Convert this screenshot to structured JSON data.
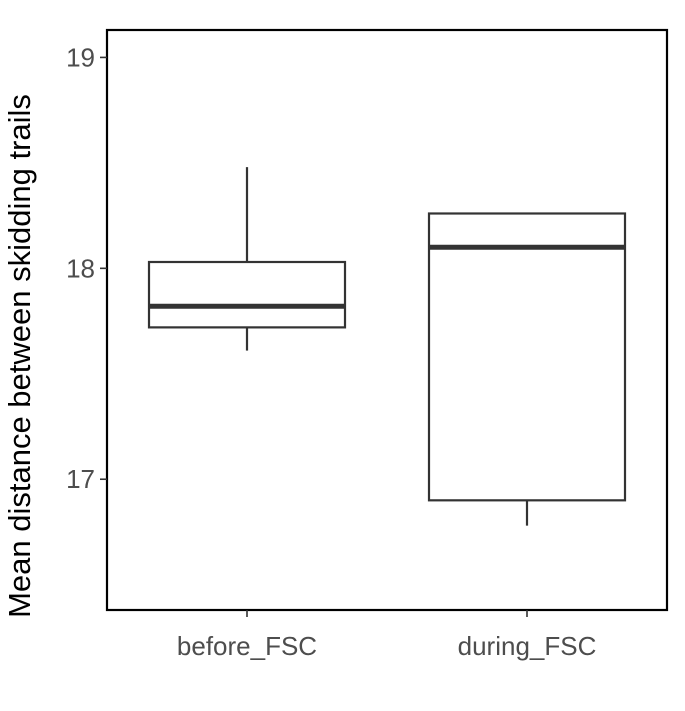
{
  "chart_data": {
    "type": "boxplot",
    "title": "",
    "xlabel": "",
    "ylabel": "Mean distance between skidding trails",
    "ylim": [
      16.38,
      19.13
    ],
    "yticks": [
      17,
      18,
      19
    ],
    "categories": [
      "before_FSC",
      "during_FSC"
    ],
    "boxes": [
      {
        "category": "before_FSC",
        "whisker_low": 17.61,
        "q1": 17.72,
        "median": 17.82,
        "q3": 18.03,
        "whisker_high": 18.48
      },
      {
        "category": "during_FSC",
        "whisker_low": 16.78,
        "q1": 16.9,
        "median": 18.1,
        "q3": 18.26,
        "whisker_high": 18.26
      }
    ],
    "grid": false,
    "legend": "none",
    "colors": {
      "box_outline": "#333333",
      "box_fill": "#ffffff",
      "panel_border": "#000000",
      "tick_label": "#4d4d4d"
    }
  }
}
